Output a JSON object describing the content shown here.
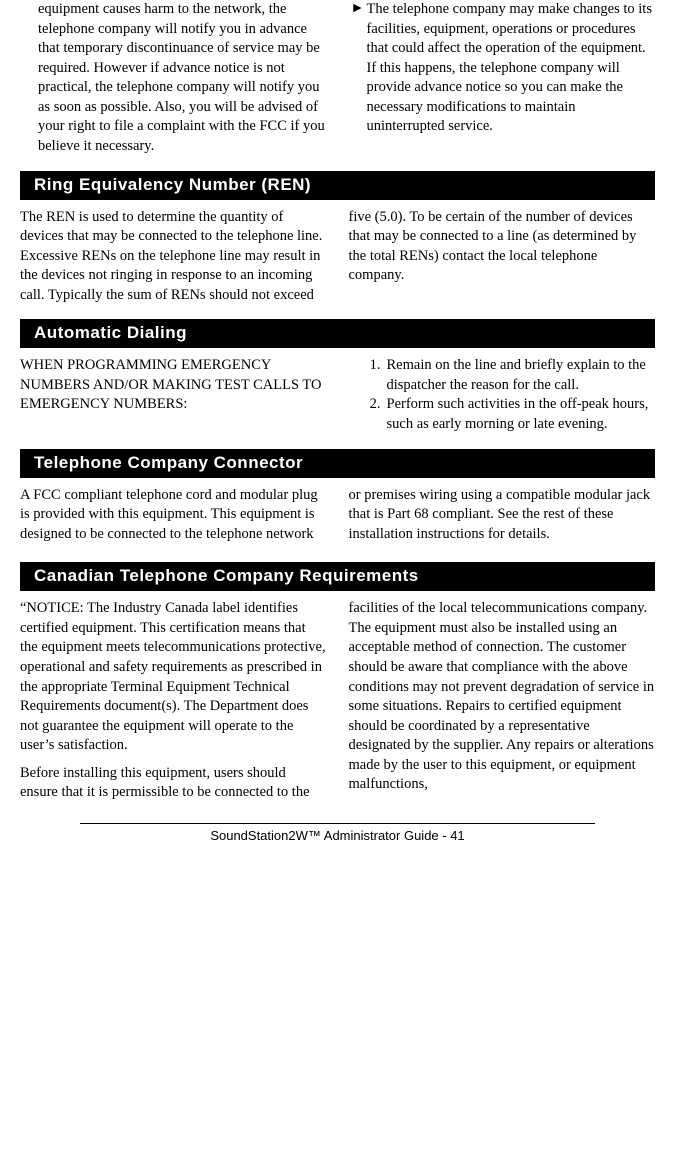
{
  "top": {
    "col1_para": "equipment causes harm to the net­work, the telephone company will notify you in advance that temporary discontinuance of service may be re­quired.  However if advance notice is not practical, the telephone company will notify you as soon as possible.  Also, you will be advised of your right to file a complaint with the FCC if you believe it necessary.",
    "col2_marker": "►",
    "col2_para": "The telephone company may make changes to its facilities, equipment, operations or procedures that could affect the operation of the equipment.  If this happens, the telephone compa­ny will provide advance notice so you can make the necessary modifications to maintain uninterrupted service."
  },
  "ren": {
    "heading": "Ring Equivalency Number (REN)",
    "body": "The REN is used to determine the quantity of devices that may be connected to the telephone line.  Excessive RENs on the telephone line may result in the devices not ringing in response to an incoming call.  Typically the sum of RENs should not exceed five (5.0).  To be certain of the number of devices that may be connected to a line (as determined by the total RENs) contact the local telephone company."
  },
  "auto": {
    "heading": "Automatic Dialing",
    "intro": "WHEN PROGRAMMING EMERGENCY NUMBERS AND/OR MAKING TEST CALLS TO EMERGENCY NUMBERS:",
    "item1_no": "1.",
    "item1_text": "Remain on the line and briefly explain to the dispatcher the reason for the call.",
    "item2_no": "2.",
    "item2_text": "Perform such activities in the off-peak hours, such as early morning or late evening."
  },
  "conn": {
    "heading": "Telephone Company Connector",
    "body": "A FCC compliant telephone cord and modular plug is provided with this equipment.  This equipment is designed to be connected to the telephone network or premises wiring using a compatible modular jack that is Part 68 compliant.  See the rest of these installation instructions for details."
  },
  "can": {
    "heading": "Canadian Telephone Company Requirements",
    "para1": "“NOTICE: The Industry Canada label identifies certified equipment.  This certification means that the equipment meets telecommunications protective, operational and safety requirements as prescribed in the appropriate Terminal Equipment Technical Requirements document(s).  The Department does not guarantee the equipment will operate to the user’s satisfaction.",
    "para2": "Before installing this equipment, users should ensure that it is permissible to be connected to the facilities of the local telecommunications company.  The equipment must also be installed using an acceptable method of connection.  The customer should be aware that compliance with the above conditions may not prevent degradation of service in some situations.  Repairs to certified equipment should be coordinated by a representative designated by the supplier.  Any repairs or alterations made by the user to this equipment, or equipment malfunctions,"
  },
  "footer": "SoundStation2W™ Administrator Guide - 41"
}
